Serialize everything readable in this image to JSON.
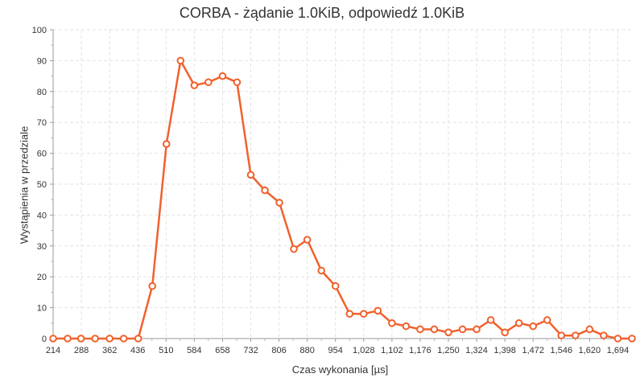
{
  "chart_data": {
    "type": "line",
    "title": "CORBA - żądanie 1.0KiB, odpowiedź 1.0KiB",
    "xlabel": "Czas wykonania [µs]",
    "ylabel": "Wystąpienia w przedziale",
    "xlim": [
      214,
      1731
    ],
    "ylim": [
      0,
      100
    ],
    "y_ticks": [
      0,
      10,
      20,
      30,
      40,
      50,
      60,
      70,
      80,
      90,
      100
    ],
    "x_ticks": [
      214,
      288,
      362,
      436,
      510,
      584,
      658,
      732,
      806,
      880,
      954,
      1028,
      1102,
      1176,
      1250,
      1324,
      1398,
      1472,
      1546,
      1620,
      1694
    ],
    "x_tick_labels": [
      "214",
      "288",
      "362",
      "436",
      "510",
      "584",
      "658",
      "732",
      "806",
      "880",
      "954",
      "1,028",
      "1,102",
      "1,176",
      "1,250",
      "1,324",
      "1,398",
      "1,472",
      "1,546",
      "1,620",
      "1,694"
    ],
    "grid": true,
    "legend": "none",
    "color": "#f0612c",
    "series": [
      {
        "x": [
          214,
          252,
          287,
          324,
          362,
          399,
          437,
          474,
          511,
          548,
          584,
          621,
          658,
          696,
          732,
          769,
          807,
          845,
          880,
          917,
          954,
          991,
          1028,
          1065,
          1102,
          1139,
          1176,
          1213,
          1250,
          1287,
          1324,
          1361,
          1398,
          1435,
          1472,
          1509,
          1546,
          1583,
          1620,
          1657,
          1694,
          1731
        ],
        "y": [
          0,
          0,
          0,
          0,
          0,
          0,
          0,
          17,
          63,
          90,
          82,
          83,
          85,
          83,
          53,
          48,
          44,
          29,
          32,
          22,
          17,
          8,
          8,
          9,
          5,
          4,
          3,
          3,
          2,
          3,
          3,
          6,
          2,
          5,
          4,
          6,
          1,
          1,
          3,
          1,
          0,
          0
        ]
      }
    ]
  }
}
